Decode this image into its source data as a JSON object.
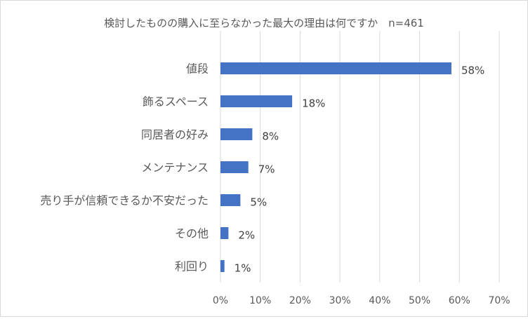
{
  "chart_data": {
    "type": "bar",
    "orientation": "horizontal",
    "title": "検討したものの購入に至らなかった最大の理由は何ですか　n=461",
    "categories": [
      "値段",
      "飾るスペース",
      "同居者の好み",
      "メンテナンス",
      "売り手が信頼できるか不安だった",
      "その他",
      "利回り"
    ],
    "values": [
      58,
      18,
      8,
      7,
      5,
      2,
      1
    ],
    "value_labels": [
      "58%",
      "18%",
      "8%",
      "7%",
      "5%",
      "2%",
      "1%"
    ],
    "xlim": [
      0,
      70
    ],
    "x_ticks": [
      0,
      10,
      20,
      30,
      40,
      50,
      60,
      70
    ],
    "x_tick_labels": [
      "0%",
      "10%",
      "20%",
      "30%",
      "40%",
      "50%",
      "60%",
      "70%"
    ],
    "xlabel": "",
    "ylabel": "",
    "grid": "vertical",
    "legend": "none",
    "bar_color": "#4472C4",
    "grid_color": "#d9d9d9",
    "text_color": "#595959",
    "label_color": "#404040"
  }
}
